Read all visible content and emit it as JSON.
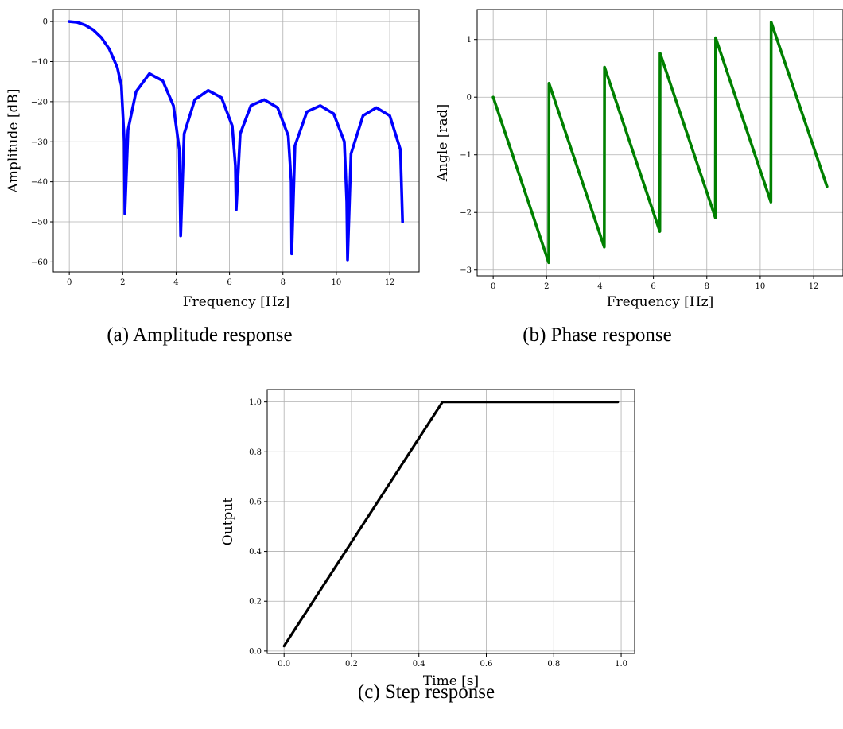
{
  "figure": {
    "captions": {
      "a": "(a) Amplitude response",
      "b": "(b) Phase response",
      "c": "(c) Step response"
    }
  },
  "chart_data": [
    {
      "id": "amplitude",
      "type": "line",
      "xlabel": "Frequency [Hz]",
      "ylabel": "Amplitude [dB]",
      "xlim": [
        -0.6,
        13.1
      ],
      "ylim": [
        -62.5,
        3.0
      ],
      "xticks": [
        0,
        2,
        4,
        6,
        8,
        10,
        12
      ],
      "yticks": [
        0,
        -10,
        -20,
        -30,
        -40,
        -50,
        -60
      ],
      "xtick_labels": [
        "0",
        "2",
        "4",
        "6",
        "8",
        "10",
        "12"
      ],
      "ytick_labels": [
        "0",
        "−10",
        "−20",
        "−30",
        "−40",
        "−50",
        "−60"
      ],
      "grid": true,
      "color": "#0000ff",
      "series": [
        {
          "x": [
            0.0,
            0.3,
            0.6,
            0.9,
            1.2,
            1.5,
            1.8,
            1.95,
            2.06,
            2.08,
            2.2,
            2.5,
            3.0,
            3.5,
            3.9,
            4.12,
            4.17,
            4.3,
            4.7,
            5.2,
            5.7,
            6.1,
            6.22,
            6.25,
            6.4,
            6.8,
            7.3,
            7.8,
            8.2,
            8.31,
            8.33,
            8.45,
            8.9,
            9.4,
            9.9,
            10.3,
            10.39,
            10.42,
            10.55,
            11.0,
            11.5,
            12.0,
            12.4,
            12.48
          ],
          "y": [
            0.0,
            -0.2,
            -0.9,
            -2.1,
            -4.0,
            -6.9,
            -11.5,
            -16.0,
            -30.0,
            -48.0,
            -27.0,
            -17.5,
            -13.0,
            -14.8,
            -21.0,
            -32.0,
            -53.5,
            -28.0,
            -19.5,
            -17.2,
            -19.0,
            -26.0,
            -36.0,
            -47.0,
            -28.0,
            -21.0,
            -19.5,
            -21.5,
            -28.5,
            -40.0,
            -58.0,
            -31.0,
            -22.5,
            -21.0,
            -23.0,
            -30.0,
            -45.0,
            -59.5,
            -33.0,
            -23.5,
            -21.5,
            -23.5,
            -32.0,
            -50.0
          ]
        }
      ]
    },
    {
      "id": "phase",
      "type": "line",
      "xlabel": "Frequency [Hz]",
      "ylabel": "Angle [rad]",
      "xlim": [
        -0.6,
        13.1
      ],
      "ylim": [
        -3.1,
        1.52
      ],
      "xticks": [
        0,
        2,
        4,
        6,
        8,
        10,
        12
      ],
      "yticks": [
        1,
        0,
        -1,
        -2,
        -3
      ],
      "xtick_labels": [
        "0",
        "2",
        "4",
        "6",
        "8",
        "10",
        "12"
      ],
      "ytick_labels": [
        "1",
        "0",
        "−1",
        "−2",
        "−3"
      ],
      "grid": true,
      "color": "#008000",
      "series": [
        {
          "x": [
            0.0,
            2.08,
            2.09,
            4.16,
            4.17,
            6.24,
            6.25,
            8.32,
            8.33,
            10.4,
            10.41,
            12.5
          ],
          "y": [
            0.0,
            -2.87,
            0.24,
            -2.6,
            0.52,
            -2.33,
            0.76,
            -2.09,
            1.03,
            -1.82,
            1.3,
            -1.55
          ]
        }
      ]
    },
    {
      "id": "step",
      "type": "line",
      "xlabel": "Time [s]",
      "ylabel": "Output",
      "xlim": [
        -0.05,
        1.04
      ],
      "ylim": [
        -0.01,
        1.05
      ],
      "xticks": [
        0.0,
        0.2,
        0.4,
        0.6,
        0.8,
        1.0
      ],
      "yticks": [
        0.0,
        0.2,
        0.4,
        0.6,
        0.8,
        1.0
      ],
      "xtick_labels": [
        "0.0",
        "0.2",
        "0.4",
        "0.6",
        "0.8",
        "1.0"
      ],
      "ytick_labels": [
        "0.0",
        "0.2",
        "0.4",
        "0.6",
        "0.8",
        "1.0"
      ],
      "grid": true,
      "color": "#000000",
      "series": [
        {
          "x": [
            0.0,
            0.47,
            0.99
          ],
          "y": [
            0.02,
            1.0,
            1.0
          ]
        }
      ]
    }
  ]
}
